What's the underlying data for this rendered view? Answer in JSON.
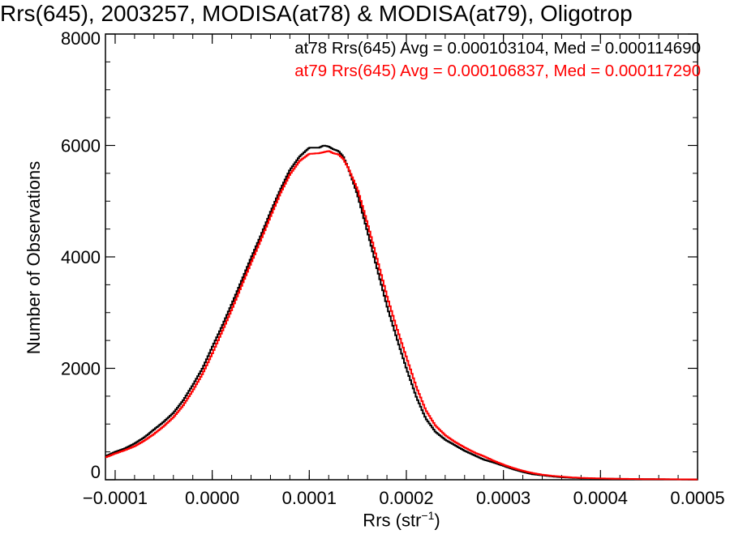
{
  "chart_data": {
    "type": "histogram",
    "title": "Rrs(645), 2003257, MODISA(at78) & MODISA(at79), Oligotrop",
    "xlabel": "Rrs (str",
    "xlabel_sup": "−1",
    "xlabel_close": ")",
    "ylabel": "Number of Observations",
    "xlim": [
      -0.00011,
      0.0005
    ],
    "ylim": [
      0,
      8000
    ],
    "x_ticks": [
      -0.0001,
      0.0,
      0.0001,
      0.0002,
      0.0003,
      0.0004,
      0.0005
    ],
    "x_tick_labels": [
      "−0.0001",
      "0.0000",
      "0.0001",
      "0.0002",
      "0.0003",
      "0.0004",
      "0.0005"
    ],
    "y_ticks": [
      0,
      2000,
      4000,
      6000,
      8000
    ],
    "y_tick_labels": [
      "0",
      "2000",
      "4000",
      "6000",
      "8000"
    ],
    "annotations": [
      "at78 Rrs(645) Avg = 0.000103104, Med = 0.000114690",
      "at79 Rrs(645) Avg = 0.000106837, Med = 0.000117290"
    ],
    "series": [
      {
        "color": "#000000",
        "x": [
          -0.00011,
          -0.0001,
          -9e-05,
          -8e-05,
          -7e-05,
          -6e-05,
          -5e-05,
          -4e-05,
          -3e-05,
          -2e-05,
          -1e-05,
          0.0,
          1e-05,
          2e-05,
          3e-05,
          4e-05,
          5e-05,
          6e-05,
          7e-05,
          8e-05,
          9e-05,
          0.0001,
          0.00011,
          0.000115,
          0.00012,
          0.000125,
          0.00013,
          0.000135,
          0.00014,
          0.00015,
          0.00016,
          0.00017,
          0.00018,
          0.00019,
          0.0002,
          0.00021,
          0.00022,
          0.00023,
          0.00024,
          0.00025,
          0.00026,
          0.00027,
          0.00028,
          0.00029,
          0.0003,
          0.00031,
          0.00032,
          0.00033,
          0.00034,
          0.00035,
          0.00036,
          0.00037,
          0.00038,
          0.0004,
          0.00042,
          0.00045,
          0.0005
        ],
        "y": [
          420,
          500,
          560,
          650,
          760,
          900,
          1040,
          1200,
          1420,
          1700,
          2000,
          2380,
          2750,
          3150,
          3560,
          3980,
          4380,
          4800,
          5200,
          5560,
          5800,
          5960,
          5960,
          6000,
          5980,
          5930,
          5900,
          5800,
          5600,
          5100,
          4450,
          3780,
          3120,
          2550,
          2000,
          1500,
          1100,
          860,
          720,
          620,
          520,
          440,
          360,
          310,
          250,
          190,
          140,
          100,
          80,
          60,
          45,
          35,
          28,
          20,
          15,
          10,
          5
        ]
      },
      {
        "color": "#ff0000",
        "x": [
          -0.00011,
          -0.0001,
          -9e-05,
          -8e-05,
          -7e-05,
          -6e-05,
          -5e-05,
          -4e-05,
          -3e-05,
          -2e-05,
          -1e-05,
          0.0,
          1e-05,
          2e-05,
          3e-05,
          4e-05,
          5e-05,
          6e-05,
          7e-05,
          8e-05,
          9e-05,
          0.0001,
          0.00011,
          0.000115,
          0.00012,
          0.000125,
          0.00013,
          0.000135,
          0.00014,
          0.00015,
          0.00016,
          0.00017,
          0.00018,
          0.00019,
          0.0002,
          0.00021,
          0.00022,
          0.00023,
          0.00024,
          0.00025,
          0.00026,
          0.00027,
          0.00028,
          0.00029,
          0.0003,
          0.00031,
          0.00032,
          0.00033,
          0.00034,
          0.00035,
          0.00036,
          0.00037,
          0.00038,
          0.0004,
          0.00042,
          0.00045,
          0.0005
        ],
        "y": [
          400,
          470,
          530,
          600,
          700,
          820,
          960,
          1120,
          1330,
          1600,
          1900,
          2260,
          2650,
          3050,
          3470,
          3890,
          4300,
          4720,
          5130,
          5480,
          5720,
          5850,
          5860,
          5880,
          5900,
          5860,
          5840,
          5760,
          5600,
          5200,
          4600,
          3950,
          3300,
          2730,
          2200,
          1680,
          1250,
          970,
          800,
          680,
          580,
          490,
          420,
          340,
          270,
          210,
          160,
          120,
          90,
          70,
          55,
          42,
          33,
          24,
          17,
          11,
          6
        ]
      }
    ]
  }
}
